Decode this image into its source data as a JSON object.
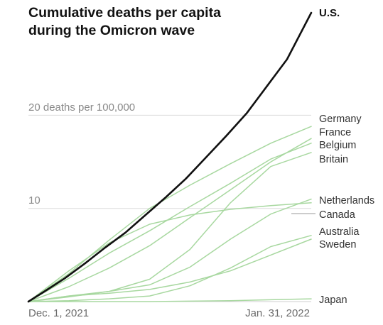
{
  "chart_data": {
    "type": "line",
    "title": [
      "Cumulative deaths per capita",
      "during the Omicron wave"
    ],
    "x_range": [
      "Dec. 1, 2021",
      "Feb. 9, 2022"
    ],
    "x_tick_labels": [
      "Dec. 1, 2021",
      "Jan. 31, 2022"
    ],
    "y_range": [
      0,
      31
    ],
    "y_ticks": [
      {
        "value": 10,
        "label": "10"
      },
      {
        "value": 20,
        "label": "20 deaths per 100,000"
      }
    ],
    "grid": true,
    "series": [
      {
        "name": "U.S.",
        "color": "#111111",
        "points": [
          [
            "Dec. 1, 2021",
            0
          ],
          [
            "Dec. 5, 2021",
            1.1
          ],
          [
            "Dec. 10, 2021",
            2.5
          ],
          [
            "Dec. 15, 2021",
            4.1
          ],
          [
            "Dec. 20, 2021",
            5.8
          ],
          [
            "Dec. 25, 2021",
            7.4
          ],
          [
            "Dec. 30, 2021",
            9.3
          ],
          [
            "Jan. 4, 2022",
            11.2
          ],
          [
            "Jan. 9, 2022",
            13.2
          ],
          [
            "Jan. 14, 2022",
            15.5
          ],
          [
            "Jan. 19, 2022",
            17.8
          ],
          [
            "Jan. 24, 2022",
            20.2
          ],
          [
            "Jan. 29, 2022",
            23.1
          ],
          [
            "Feb. 3, 2022",
            26.0
          ],
          [
            "Feb. 9, 2022",
            31.0
          ]
        ]
      },
      {
        "name": "Germany",
        "color": "#a8d8a0",
        "points": [
          [
            "Dec. 1, 2021",
            0
          ],
          [
            "Dec. 11, 2021",
            3.0
          ],
          [
            "Dec. 21, 2021",
            6.6
          ],
          [
            "Dec. 31, 2021",
            10.0
          ],
          [
            "Jan. 10, 2022",
            12.5
          ],
          [
            "Jan. 20, 2022",
            14.8
          ],
          [
            "Jan. 30, 2022",
            17.0
          ],
          [
            "Feb. 9, 2022",
            18.8
          ]
        ]
      },
      {
        "name": "France",
        "color": "#a8d8a0",
        "points": [
          [
            "Dec. 1, 2021",
            0
          ],
          [
            "Dec. 11, 2021",
            1.6
          ],
          [
            "Dec. 21, 2021",
            3.6
          ],
          [
            "Dec. 31, 2021",
            6.0
          ],
          [
            "Jan. 10, 2022",
            9.0
          ],
          [
            "Jan. 20, 2022",
            12.0
          ],
          [
            "Jan. 30, 2022",
            15.0
          ],
          [
            "Feb. 9, 2022",
            17.5
          ]
        ]
      },
      {
        "name": "Belgium",
        "color": "#a8d8a0",
        "points": [
          [
            "Dec. 1, 2021",
            0
          ],
          [
            "Dec. 11, 2021",
            2.5
          ],
          [
            "Dec. 21, 2021",
            5.2
          ],
          [
            "Dec. 31, 2021",
            7.6
          ],
          [
            "Jan. 10, 2022",
            10.2
          ],
          [
            "Jan. 20, 2022",
            12.7
          ],
          [
            "Jan. 30, 2022",
            15.3
          ],
          [
            "Feb. 9, 2022",
            17.0
          ]
        ]
      },
      {
        "name": "Britain",
        "color": "#a8d8a0",
        "points": [
          [
            "Dec. 1, 2021",
            0
          ],
          [
            "Dec. 11, 2021",
            0.5
          ],
          [
            "Dec. 21, 2021",
            1.1
          ],
          [
            "Dec. 31, 2021",
            2.4
          ],
          [
            "Jan. 10, 2022",
            5.6
          ],
          [
            "Jan. 20, 2022",
            10.6
          ],
          [
            "Jan. 30, 2022",
            14.5
          ],
          [
            "Feb. 9, 2022",
            16.0
          ]
        ]
      },
      {
        "name": "Netherlands",
        "color": "#a8d8a0",
        "points": [
          [
            "Dec. 1, 2021",
            0
          ],
          [
            "Dec. 11, 2021",
            3.3
          ],
          [
            "Dec. 21, 2021",
            6.3
          ],
          [
            "Dec. 31, 2021",
            8.3
          ],
          [
            "Jan. 10, 2022",
            9.3
          ],
          [
            "Jan. 20, 2022",
            9.9
          ],
          [
            "Jan. 30, 2022",
            10.3
          ],
          [
            "Feb. 9, 2022",
            10.6
          ]
        ]
      },
      {
        "name": "Canada",
        "color": "#a8d8a0",
        "points": [
          [
            "Dec. 1, 2021",
            0
          ],
          [
            "Dec. 11, 2021",
            0.6
          ],
          [
            "Dec. 21, 2021",
            1.1
          ],
          [
            "Dec. 31, 2021",
            1.8
          ],
          [
            "Jan. 10, 2022",
            3.7
          ],
          [
            "Jan. 20, 2022",
            6.7
          ],
          [
            "Jan. 30, 2022",
            9.4
          ],
          [
            "Feb. 9, 2022",
            11.0
          ]
        ]
      },
      {
        "name": "Australia",
        "color": "#a8d8a0",
        "points": [
          [
            "Dec. 1, 2021",
            0
          ],
          [
            "Dec. 11, 2021",
            0.1
          ],
          [
            "Dec. 21, 2021",
            0.3
          ],
          [
            "Dec. 31, 2021",
            0.6
          ],
          [
            "Jan. 10, 2022",
            1.7
          ],
          [
            "Jan. 20, 2022",
            3.6
          ],
          [
            "Jan. 30, 2022",
            5.9
          ],
          [
            "Feb. 9, 2022",
            7.1
          ]
        ]
      },
      {
        "name": "Sweden",
        "color": "#a8d8a0",
        "points": [
          [
            "Dec. 1, 2021",
            0
          ],
          [
            "Dec. 11, 2021",
            0.6
          ],
          [
            "Dec. 21, 2021",
            0.9
          ],
          [
            "Dec. 31, 2021",
            1.3
          ],
          [
            "Jan. 10, 2022",
            2.1
          ],
          [
            "Jan. 20, 2022",
            3.3
          ],
          [
            "Jan. 30, 2022",
            5.0
          ],
          [
            "Feb. 9, 2022",
            6.7
          ]
        ]
      },
      {
        "name": "Japan",
        "color": "#a8d8a0",
        "points": [
          [
            "Dec. 1, 2021",
            0
          ],
          [
            "Dec. 31, 2021",
            0.0
          ],
          [
            "Jan. 20, 2022",
            0.1
          ],
          [
            "Feb. 9, 2022",
            0.3
          ]
        ]
      }
    ]
  },
  "labels": {
    "us": "U.S.",
    "germany": "Germany",
    "france": "France",
    "belgium": "Belgium",
    "britain": "Britain",
    "netherlands": "Netherlands",
    "canada": "Canada",
    "australia": "Australia",
    "sweden": "Sweden",
    "japan": "Japan"
  },
  "colors": {
    "us_line": "#111111",
    "other_lines": "#a8d8a0",
    "gridline": "#dcdcdc"
  }
}
